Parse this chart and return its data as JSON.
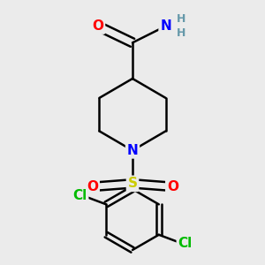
{
  "background_color": "#ebebeb",
  "bond_color": "#000000",
  "bond_width": 1.8,
  "atom_colors": {
    "O": "#ff0000",
    "N": "#0000ff",
    "S": "#cccc00",
    "Cl": "#00bb00",
    "H": "#6699aa",
    "C": "#000000"
  },
  "font_size_atom": 11,
  "font_size_h": 9,
  "dbl_sep": 0.018
}
